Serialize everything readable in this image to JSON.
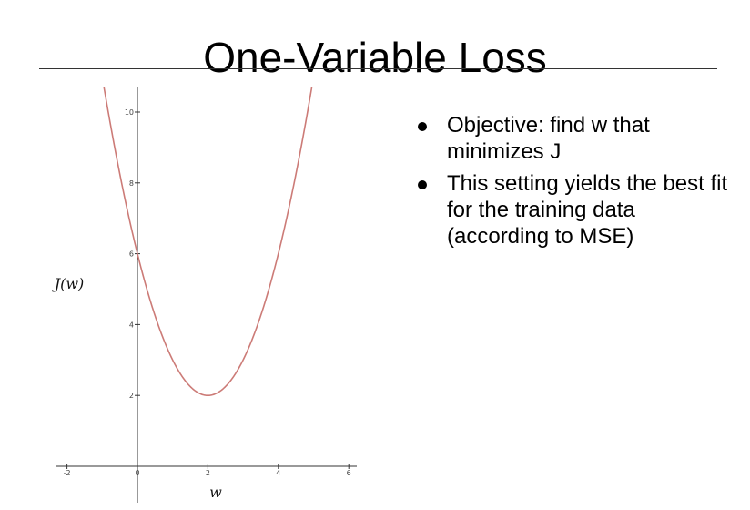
{
  "slide": {
    "title": "One-Variable Loss",
    "bullets": [
      "Objective: find w that minimizes J",
      "This setting yields the best fit for the training data (according to MSE)"
    ]
  },
  "chart_data": {
    "type": "line",
    "title": "",
    "xlabel": "w",
    "ylabel": "J(w)",
    "xlim": [
      -2.2,
      6.3
    ],
    "ylim": [
      0,
      10.7
    ],
    "x_ticks": [
      -2,
      0,
      2,
      4,
      6
    ],
    "y_ticks": [
      2,
      4,
      6,
      8,
      10
    ],
    "grid": false,
    "legend": "none",
    "curve_color": "#cc7b77",
    "series": [
      {
        "function": "J(w) = (w - 2)^2 + 2",
        "x": [
          -1.0,
          -0.5,
          0,
          0.5,
          1.0,
          1.5,
          2.0,
          2.5,
          3.0,
          3.5,
          4.0,
          4.5,
          5.0
        ],
        "values": [
          11.0,
          8.25,
          6.0,
          4.25,
          3.0,
          2.25,
          2.0,
          2.25,
          3.0,
          4.25,
          6.0,
          8.25,
          11.0
        ]
      }
    ]
  }
}
